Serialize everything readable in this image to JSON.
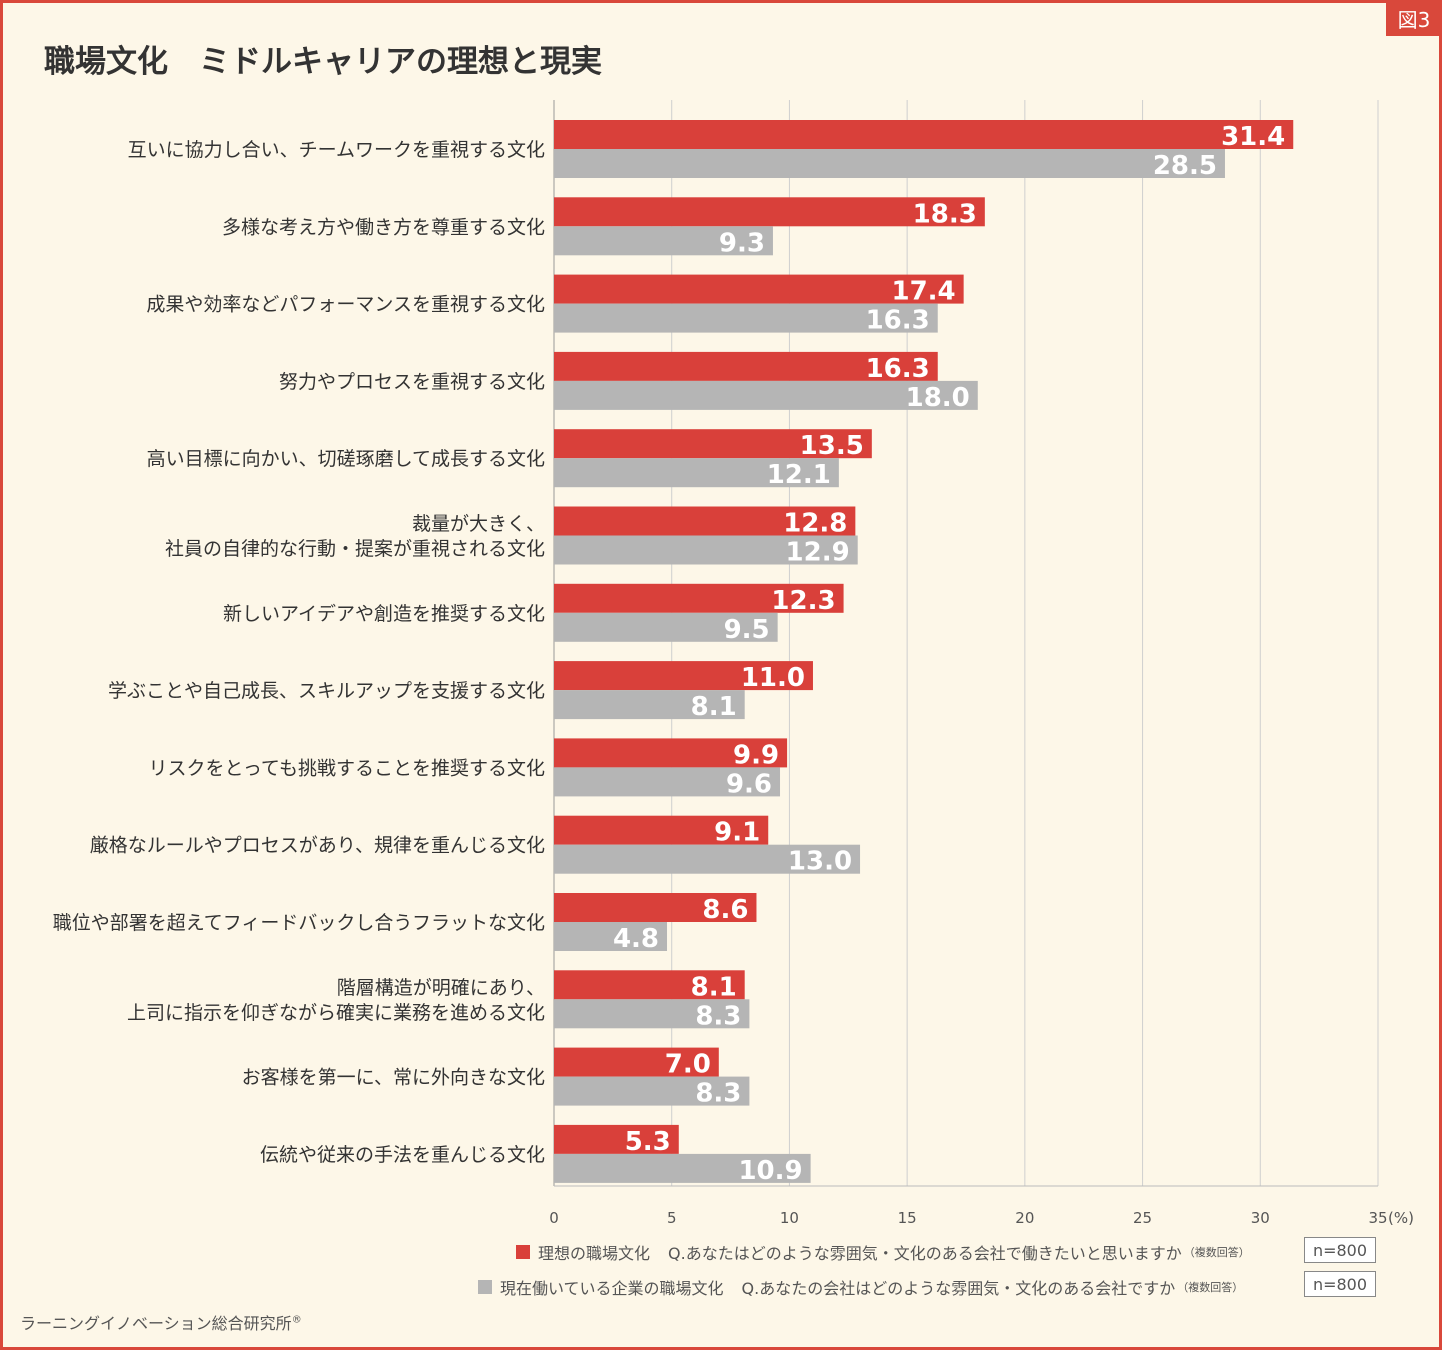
{
  "badge": "図3",
  "title": "職場文化　ミドルキャリアの理想と現実",
  "chart_data": {
    "type": "bar",
    "orientation": "horizontal",
    "categories": [
      [
        "互いに協力し合い、チームワークを重視する文化"
      ],
      [
        "多様な考え方や働き方を尊重する文化"
      ],
      [
        "成果や効率などパフォーマンスを重視する文化"
      ],
      [
        "努力やプロセスを重視する文化"
      ],
      [
        "高い目標に向かい、切磋琢磨して成長する文化"
      ],
      [
        "裁量が大きく、",
        "社員の自律的な行動・提案が重視される文化"
      ],
      [
        "新しいアイデアや創造を推奨する文化"
      ],
      [
        "学ぶことや自己成長、スキルアップを支援する文化"
      ],
      [
        "リスクをとっても挑戦することを推奨する文化"
      ],
      [
        "厳格なルールやプロセスがあり、規律を重んじる文化"
      ],
      [
        "職位や部署を超えてフィードバックし合うフラットな文化"
      ],
      [
        "階層構造が明確にあり、",
        "上司に指示を仰ぎながら確実に業務を進める文化"
      ],
      [
        "お客様を第一に、常に外向きな文化"
      ],
      [
        "伝統や従来の手法を重んじる文化"
      ]
    ],
    "series": [
      {
        "name": "理想の職場文化",
        "color": "#d9403a",
        "values": [
          31.4,
          18.3,
          17.4,
          16.3,
          13.5,
          12.8,
          12.3,
          11.0,
          9.9,
          9.1,
          8.6,
          8.1,
          7.0,
          5.3
        ]
      },
      {
        "name": "現在働いている企業の職場文化",
        "color": "#b5b5b5",
        "values": [
          28.5,
          9.3,
          16.3,
          18.0,
          12.1,
          12.9,
          9.5,
          8.1,
          9.6,
          13.0,
          4.8,
          8.3,
          8.3,
          10.9
        ]
      }
    ],
    "xlim": [
      0,
      35
    ],
    "xticks": [
      "0",
      "5",
      "10",
      "15",
      "20",
      "25",
      "30",
      "35"
    ],
    "xunit": "(%)",
    "grid": true
  },
  "legend": [
    {
      "label": "理想の職場文化",
      "question": "Q.あなたはどのような雰囲気・文化のある会社で働きたいと思いますか",
      "note": "（複数回答）",
      "n": "n=800",
      "color": "#d9403a"
    },
    {
      "label": "現在働いている企業の職場文化",
      "question": "Q.あなたの会社はどのような雰囲気・文化のある会社ですか",
      "note": "（複数回答）",
      "n": "n=800",
      "color": "#b5b5b5"
    }
  ],
  "source": "ラーニングイノベーション総合研究所",
  "source_mark": "®"
}
